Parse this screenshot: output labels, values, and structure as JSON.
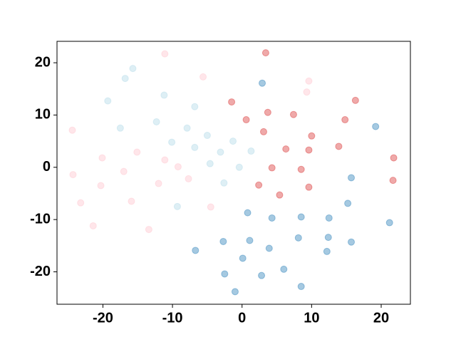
{
  "chart_data": {
    "type": "scatter",
    "alpha": 0.4,
    "xlim": [
      -26.6,
      24.2
    ],
    "ylim": [
      -26.2,
      24.1
    ],
    "xticks": [
      -20,
      -10,
      0,
      10,
      20
    ],
    "yticks": [
      -20,
      -10,
      0,
      10,
      20
    ],
    "series": [
      {
        "color": "#d62728",
        "x": [
          3.4,
          -1.5,
          3.7,
          0.6,
          7.4,
          16.3,
          14.8,
          3.1,
          10.0,
          6.3,
          9.6,
          13.9,
          21.8,
          4.3,
          8.5,
          21.7,
          2.4,
          9.6,
          5.4
        ],
        "values": [
          21.9,
          12.5,
          10.5,
          9.1,
          10.1,
          12.8,
          9.1,
          6.8,
          6.0,
          3.5,
          3.3,
          4.0,
          1.8,
          -0.1,
          -0.4,
          -2.5,
          -3.4,
          -3.8,
          -5.3
        ]
      },
      {
        "color": "#1f77b4",
        "x": [
          2.9,
          19.2,
          15.7,
          15.2,
          0.8,
          4.3,
          8.5,
          12.5,
          21.2,
          -2.7,
          1.1,
          8.1,
          12.4,
          15.7,
          -6.7,
          3.9,
          12.2,
          0.1,
          6.0,
          -2.5,
          2.8,
          8.5,
          -1.0
        ],
        "values": [
          16.1,
          7.8,
          -2.0,
          -6.9,
          -8.7,
          -9.7,
          -9.5,
          -9.7,
          -10.6,
          -14.2,
          -14.0,
          -13.5,
          -13.4,
          -14.3,
          -15.9,
          -15.5,
          -16.1,
          -17.4,
          -19.5,
          -20.4,
          -20.7,
          -22.8,
          -23.8
        ]
      },
      {
        "color": "#add8e6",
        "x": [
          -15.7,
          -16.8,
          -11.2,
          -19.3,
          -6.8,
          -12.3,
          -17.5,
          -7.9,
          -5.0,
          -10.1,
          -1.3,
          -6.8,
          1.3,
          -3.1,
          -4.6,
          -0.4,
          -2.6,
          -9.3
        ],
        "values": [
          18.9,
          17.0,
          13.8,
          12.7,
          11.6,
          8.7,
          7.5,
          7.5,
          6.1,
          4.8,
          5.0,
          3.8,
          3.1,
          2.9,
          0.7,
          0.0,
          -3.0,
          -7.5
        ]
      },
      {
        "color": "#ffc0cb",
        "x": [
          -11.1,
          -5.6,
          9.6,
          9.3,
          -24.4,
          -15.1,
          -20.1,
          -11.1,
          -9.2,
          -17.0,
          -24.3,
          -7.7,
          -12.0,
          -20.3,
          -15.9,
          -23.2,
          -4.5,
          -21.4,
          -13.4
        ],
        "values": [
          21.7,
          17.3,
          16.5,
          14.4,
          7.1,
          2.9,
          1.8,
          1.4,
          0.1,
          -0.8,
          -1.4,
          -2.2,
          -3.1,
          -3.5,
          -6.5,
          -6.8,
          -7.6,
          -11.2,
          -11.9
        ]
      }
    ]
  }
}
